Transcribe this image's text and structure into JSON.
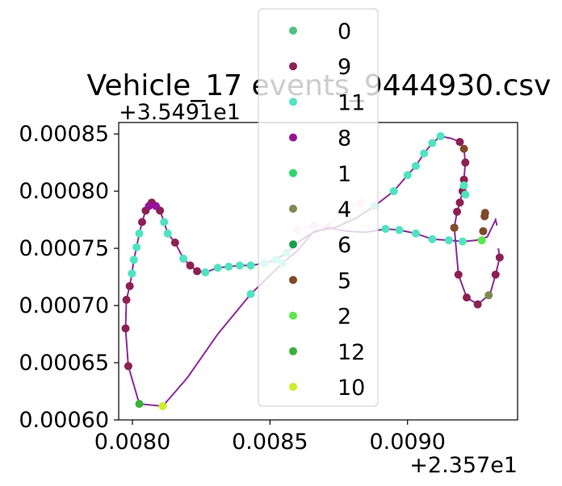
{
  "chart_data": {
    "type": "scatter",
    "title": "Vehicle_17 events_9444930.csv",
    "x_offset_label": "+2.357e1",
    "y_offset_label": "+3.5491e1",
    "xlim": [
      0.00795,
      0.0094
    ],
    "ylim": [
      0.0006,
      0.00086
    ],
    "x_ticks": [
      {
        "value": 0.008,
        "label": "0.0080"
      },
      {
        "value": 0.0085,
        "label": "0.0085"
      },
      {
        "value": 0.009,
        "label": "0.0090"
      }
    ],
    "y_ticks": [
      {
        "value": 0.0006,
        "label": "0.00060"
      },
      {
        "value": 0.00065,
        "label": "0.00065"
      },
      {
        "value": 0.0007,
        "label": "0.00070"
      },
      {
        "value": 0.00075,
        "label": "0.00075"
      },
      {
        "value": 0.0008,
        "label": "0.00080"
      },
      {
        "value": 0.00085,
        "label": "0.00085"
      }
    ],
    "legend_position": "upper center",
    "trajectory": {
      "color": "#8b2a9a",
      "points": [
        [
          0.00933,
          0.00075
        ],
        [
          0.009335,
          0.000742
        ],
        [
          0.00932,
          0.000727
        ],
        [
          0.0093,
          0.00071
        ],
        [
          0.009255,
          0.000701
        ],
        [
          0.009215,
          0.000707
        ],
        [
          0.009185,
          0.000727
        ],
        [
          0.00917,
          0.000768
        ],
        [
          0.00918,
          0.000782
        ],
        [
          0.00919,
          0.00079
        ],
        [
          0.0092,
          0.0008
        ],
        [
          0.009205,
          0.00081
        ],
        [
          0.00921,
          0.000825
        ],
        [
          0.009205,
          0.000837
        ],
        [
          0.00919,
          0.000843
        ],
        [
          0.00916,
          0.000846
        ],
        [
          0.00912,
          0.000848
        ],
        [
          0.00909,
          0.000842
        ],
        [
          0.00906,
          0.000833
        ],
        [
          0.00903,
          0.000822
        ],
        [
          0.009,
          0.000814
        ],
        [
          0.00895,
          0.0008
        ],
        [
          0.00888,
          0.000787
        ],
        [
          0.00881,
          0.000776
        ],
        [
          0.008735,
          0.000768
        ],
        [
          0.00866,
          0.000765
        ],
        [
          0.0086,
          0.000748
        ],
        [
          0.008545,
          0.000737
        ],
        [
          0.00843,
          0.00071
        ],
        [
          0.00831,
          0.000675
        ],
        [
          0.0082,
          0.000637
        ],
        [
          0.00811,
          0.000612
        ],
        [
          0.008025,
          0.000614
        ],
        [
          0.007985,
          0.000647
        ],
        [
          0.007975,
          0.00068
        ],
        [
          0.007978,
          0.000705
        ],
        [
          0.00799,
          0.000717
        ],
        [
          0.007998,
          0.000728
        ],
        [
          0.008005,
          0.00074
        ],
        [
          0.008015,
          0.000751
        ],
        [
          0.008025,
          0.000763
        ],
        [
          0.008035,
          0.000773
        ],
        [
          0.008048,
          0.000783
        ],
        [
          0.00806,
          0.000787
        ],
        [
          0.00807,
          0.00079
        ],
        [
          0.008085,
          0.000787
        ],
        [
          0.0081,
          0.000783
        ],
        [
          0.008115,
          0.000773
        ],
        [
          0.008128,
          0.000763
        ],
        [
          0.008155,
          0.000755
        ],
        [
          0.008185,
          0.000741
        ],
        [
          0.00821,
          0.000735
        ],
        [
          0.008235,
          0.00073
        ],
        [
          0.008265,
          0.000729
        ],
        [
          0.00831,
          0.000733
        ],
        [
          0.00835,
          0.000734
        ],
        [
          0.00839,
          0.000735
        ],
        [
          0.00843,
          0.000735
        ],
        [
          0.00848,
          0.000737
        ],
        [
          0.00852,
          0.00074
        ],
        [
          0.00856,
          0.000746
        ],
        [
          0.0086,
          0.000755
        ],
        [
          0.00865,
          0.000763
        ],
        [
          0.00871,
          0.000768
        ],
        [
          0.00878,
          0.000765
        ],
        [
          0.00885,
          0.000764
        ],
        [
          0.00892,
          0.000767
        ],
        [
          0.00897,
          0.000766
        ],
        [
          0.00903,
          0.000763
        ],
        [
          0.00909,
          0.000758
        ],
        [
          0.00915,
          0.000757
        ],
        [
          0.0092,
          0.000756
        ],
        [
          0.00925,
          0.000757
        ],
        [
          0.00929,
          0.00076
        ],
        [
          0.00931,
          0.00077
        ],
        [
          0.00932,
          0.000775
        ],
        [
          0.009325,
          0.00077
        ]
      ]
    },
    "series": [
      {
        "name": "0",
        "color": "#4cc27e",
        "points": []
      },
      {
        "name": "9",
        "color": "#8b2052",
        "points": [
          [
            0.009335,
            0.000742
          ],
          [
            0.00932,
            0.000727
          ],
          [
            0.009255,
            0.000701
          ],
          [
            0.009215,
            0.000707
          ],
          [
            0.009185,
            0.000727
          ],
          [
            0.00917,
            0.000768
          ],
          [
            0.00918,
            0.000782
          ],
          [
            0.00919,
            0.00079
          ],
          [
            0.0092,
            0.0008
          ],
          [
            0.009205,
            0.00081
          ],
          [
            0.00921,
            0.000825
          ],
          [
            0.00919,
            0.000843
          ],
          [
            0.007985,
            0.000647
          ],
          [
            0.007975,
            0.00068
          ],
          [
            0.007978,
            0.000705
          ],
          [
            0.00799,
            0.000717
          ],
          [
            0.008035,
            0.000773
          ],
          [
            0.008048,
            0.000783
          ],
          [
            0.00807,
            0.00079
          ],
          [
            0.0081,
            0.000783
          ],
          [
            0.008155,
            0.000755
          ],
          [
            0.00821,
            0.000735
          ],
          [
            0.008235,
            0.00073
          ]
        ]
      },
      {
        "name": "11",
        "color": "#4fe3c0",
        "points": [
          [
            0.00912,
            0.000848
          ],
          [
            0.00909,
            0.000842
          ],
          [
            0.00906,
            0.000833
          ],
          [
            0.00903,
            0.000822
          ],
          [
            0.009,
            0.000814
          ],
          [
            0.00895,
            0.0008
          ],
          [
            0.00888,
            0.000787
          ],
          [
            0.00843,
            0.00071
          ],
          [
            0.008545,
            0.000737
          ],
          [
            0.007998,
            0.000728
          ],
          [
            0.008005,
            0.00074
          ],
          [
            0.008015,
            0.000751
          ],
          [
            0.008025,
            0.000763
          ],
          [
            0.008115,
            0.000773
          ],
          [
            0.008128,
            0.000763
          ],
          [
            0.008185,
            0.000741
          ],
          [
            0.008265,
            0.000729
          ],
          [
            0.00831,
            0.000733
          ],
          [
            0.00835,
            0.000734
          ],
          [
            0.00839,
            0.000735
          ],
          [
            0.00843,
            0.000735
          ],
          [
            0.00848,
            0.000737
          ],
          [
            0.00852,
            0.00074
          ],
          [
            0.00856,
            0.000746
          ],
          [
            0.00892,
            0.000767
          ],
          [
            0.00897,
            0.000766
          ],
          [
            0.00903,
            0.000763
          ],
          [
            0.00909,
            0.000758
          ],
          [
            0.00915,
            0.000757
          ],
          [
            0.0092,
            0.000756
          ],
          [
            0.00921,
            0.000797
          ],
          [
            0.009205,
            0.000805
          ]
        ]
      },
      {
        "name": "8",
        "color": "#96129a",
        "points": [
          [
            0.00806,
            0.000787
          ],
          [
            0.008085,
            0.000787
          ]
        ]
      },
      {
        "name": "1",
        "color": "#2ed66c",
        "points": []
      },
      {
        "name": "4",
        "color": "#7e8a52",
        "points": [
          [
            0.009295,
            0.000709
          ]
        ]
      },
      {
        "name": "6",
        "color": "#1a9e52",
        "points": []
      },
      {
        "name": "5",
        "color": "#7f4a2a",
        "points": [
          [
            0.00917,
            0.000768
          ],
          [
            0.009205,
            0.000837
          ],
          [
            0.009275,
            0.000765
          ],
          [
            0.00928,
            0.000778
          ],
          [
            0.009282,
            0.000781
          ]
        ]
      },
      {
        "name": "2",
        "color": "#5bea4a",
        "points": [
          [
            0.00927,
            0.000757
          ]
        ]
      },
      {
        "name": "12",
        "color": "#39b03a",
        "points": [
          [
            0.008025,
            0.000614
          ]
        ]
      },
      {
        "name": "10",
        "color": "#c8ef2a",
        "points": [
          [
            0.00811,
            0.000612
          ]
        ]
      }
    ],
    "faded_points": {
      "color": "#e8c8e6",
      "points": [
        [
          0.0086,
          0.000766
        ],
        [
          0.00866,
          0.00077
        ],
        [
          0.00871,
          0.000769
        ],
        [
          0.00878,
          0.000787
        ],
        [
          0.00883,
          0.00079
        ]
      ]
    }
  }
}
